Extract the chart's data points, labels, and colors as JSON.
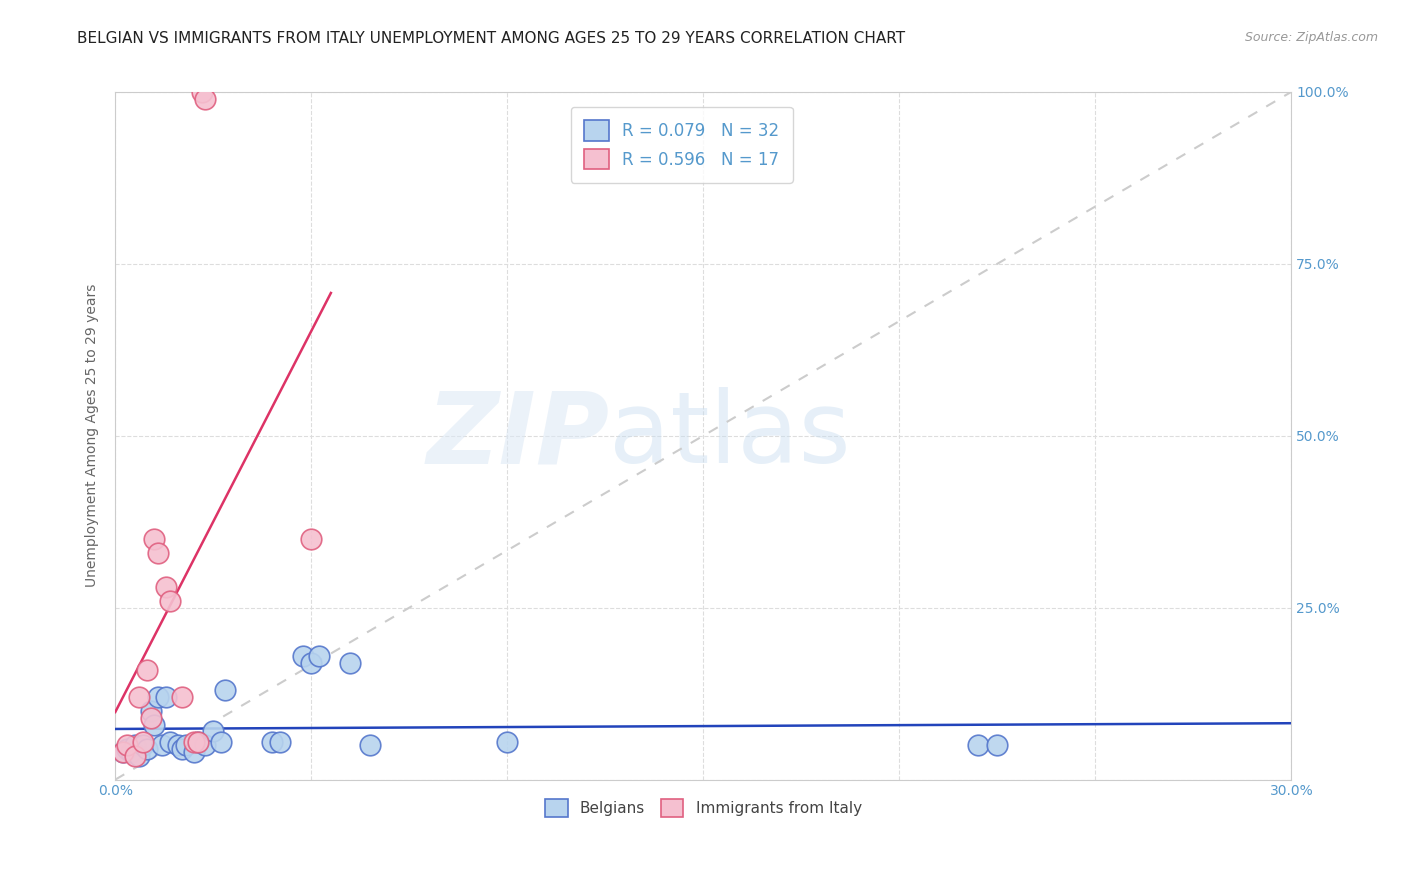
{
  "title": "BELGIAN VS IMMIGRANTS FROM ITALY UNEMPLOYMENT AMONG AGES 25 TO 29 YEARS CORRELATION CHART",
  "source": "Source: ZipAtlas.com",
  "ylabel": "Unemployment Among Ages 25 to 29 years",
  "xlim": [
    0.0,
    0.3
  ],
  "ylim": [
    0.0,
    1.0
  ],
  "xticks": [
    0.0,
    0.05,
    0.1,
    0.15,
    0.2,
    0.25,
    0.3
  ],
  "yticks": [
    0.0,
    0.25,
    0.5,
    0.75,
    1.0
  ],
  "belgian_color": "#b8d4ee",
  "italian_color": "#f5c0d0",
  "belgian_edge_color": "#5577cc",
  "italian_edge_color": "#e06080",
  "belgian_line_color": "#2244bb",
  "italian_line_color": "#dd3366",
  "ref_line_color": "#cccccc",
  "legend_R_belgian": "R = 0.079",
  "legend_N_belgian": "N = 32",
  "legend_R_italian": "R = 0.596",
  "legend_N_italian": "N = 17",
  "watermark_zip": "ZIP",
  "watermark_atlas": "atlas",
  "belgians_x": [
    0.002,
    0.003,
    0.004,
    0.005,
    0.006,
    0.007,
    0.008,
    0.009,
    0.01,
    0.011,
    0.012,
    0.013,
    0.014,
    0.016,
    0.017,
    0.018,
    0.02,
    0.021,
    0.023,
    0.025,
    0.027,
    0.028,
    0.04,
    0.042,
    0.048,
    0.05,
    0.052,
    0.06,
    0.065,
    0.1,
    0.22,
    0.225
  ],
  "belgians_y": [
    0.04,
    0.045,
    0.04,
    0.05,
    0.035,
    0.05,
    0.045,
    0.1,
    0.08,
    0.12,
    0.05,
    0.12,
    0.055,
    0.05,
    0.045,
    0.05,
    0.04,
    0.055,
    0.05,
    0.07,
    0.055,
    0.13,
    0.055,
    0.055,
    0.18,
    0.17,
    0.18,
    0.17,
    0.05,
    0.055,
    0.05,
    0.05
  ],
  "italians_x": [
    0.002,
    0.003,
    0.005,
    0.006,
    0.007,
    0.008,
    0.009,
    0.01,
    0.011,
    0.013,
    0.014,
    0.017,
    0.02,
    0.021,
    0.05,
    0.022,
    0.023
  ],
  "italians_y": [
    0.04,
    0.05,
    0.035,
    0.12,
    0.055,
    0.16,
    0.09,
    0.35,
    0.33,
    0.28,
    0.26,
    0.12,
    0.055,
    0.055,
    0.35,
    1.0,
    0.99
  ],
  "grid_color": "#dddddd",
  "bg_color": "#ffffff",
  "axis_color": "#cccccc",
  "tick_label_color": "#5599cc",
  "ylabel_color": "#666666",
  "title_color": "#222222",
  "title_fontsize": 11,
  "ylabel_fontsize": 10,
  "tick_fontsize": 10,
  "legend_fontsize": 12,
  "source_fontsize": 9
}
